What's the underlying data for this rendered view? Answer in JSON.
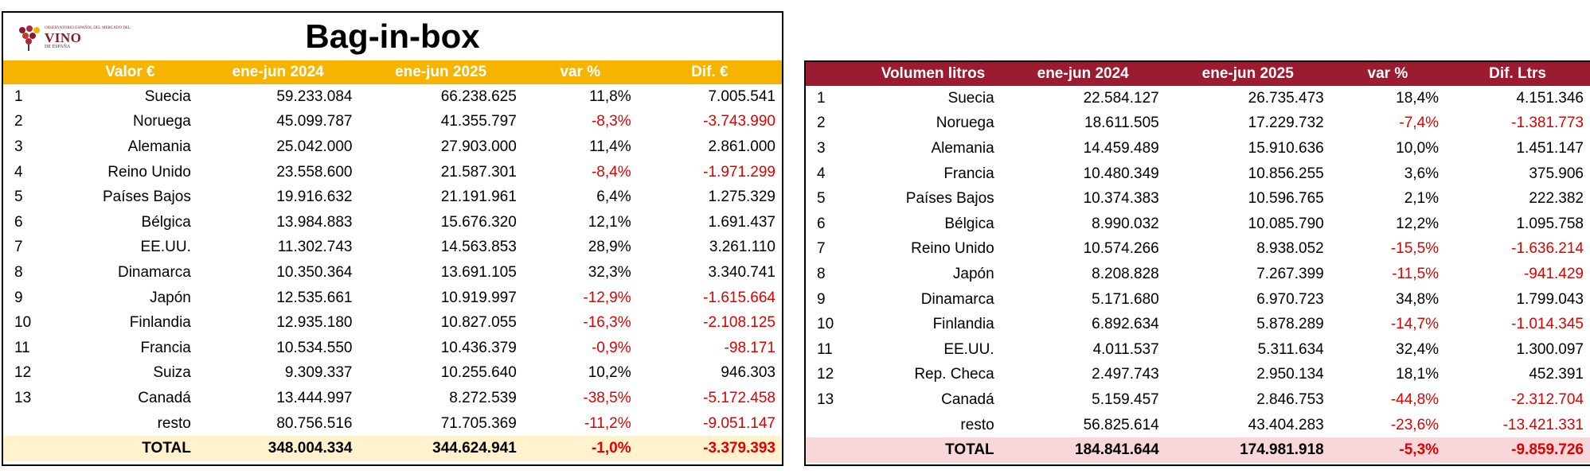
{
  "title": "Bag-in-box",
  "logo": {
    "small": "OBSERVATORIO ESPAÑOL DEL MERCADO DEL",
    "big": "VINO",
    "sub": "DE ESPAÑA"
  },
  "colors": {
    "left_header": "#f5b400",
    "right_header": "#9b1b30",
    "negative": "#e00000"
  },
  "left_table": {
    "headers": [
      "",
      "Valor €",
      "ene-jun 2024",
      "ene-jun 2025",
      "var %",
      "Dif. €"
    ],
    "rows": [
      {
        "rank": "1",
        "country": "Suecia",
        "y2024": "59.233.084",
        "y2025": "66.238.625",
        "var": "11,8%",
        "dif": "7.005.541"
      },
      {
        "rank": "2",
        "country": "Noruega",
        "y2024": "45.099.787",
        "y2025": "41.355.797",
        "var": "-8,3%",
        "dif": "-3.743.990"
      },
      {
        "rank": "3",
        "country": "Alemania",
        "y2024": "25.042.000",
        "y2025": "27.903.000",
        "var": "11,4%",
        "dif": "2.861.000"
      },
      {
        "rank": "4",
        "country": "Reino Unido",
        "y2024": "23.558.600",
        "y2025": "21.587.301",
        "var": "-8,4%",
        "dif": "-1.971.299"
      },
      {
        "rank": "5",
        "country": "Países Bajos",
        "y2024": "19.916.632",
        "y2025": "21.191.961",
        "var": "6,4%",
        "dif": "1.275.329"
      },
      {
        "rank": "6",
        "country": "Bélgica",
        "y2024": "13.984.883",
        "y2025": "15.676.320",
        "var": "12,1%",
        "dif": "1.691.437"
      },
      {
        "rank": "7",
        "country": "EE.UU.",
        "y2024": "11.302.743",
        "y2025": "14.563.853",
        "var": "28,9%",
        "dif": "3.261.110"
      },
      {
        "rank": "8",
        "country": "Dinamarca",
        "y2024": "10.350.364",
        "y2025": "13.691.105",
        "var": "32,3%",
        "dif": "3.340.741"
      },
      {
        "rank": "9",
        "country": "Japón",
        "y2024": "12.535.661",
        "y2025": "10.919.997",
        "var": "-12,9%",
        "dif": "-1.615.664"
      },
      {
        "rank": "10",
        "country": "Finlandia",
        "y2024": "12.935.180",
        "y2025": "10.827.055",
        "var": "-16,3%",
        "dif": "-2.108.125"
      },
      {
        "rank": "11",
        "country": "Francia",
        "y2024": "10.534.550",
        "y2025": "10.436.379",
        "var": "-0,9%",
        "dif": "-98.171"
      },
      {
        "rank": "12",
        "country": "Suiza",
        "y2024": "9.309.337",
        "y2025": "10.255.640",
        "var": "10,2%",
        "dif": "946.303"
      },
      {
        "rank": "13",
        "country": "Canadá",
        "y2024": "13.444.997",
        "y2025": "8.272.539",
        "var": "-38,5%",
        "dif": "-5.172.458"
      },
      {
        "rank": "",
        "country": "resto",
        "y2024": "80.756.516",
        "y2025": "71.705.369",
        "var": "-11,2%",
        "dif": "-9.051.147"
      }
    ],
    "total": {
      "rank": "",
      "country": "TOTAL",
      "y2024": "348.004.334",
      "y2025": "344.624.941",
      "var": "-1,0%",
      "dif": "-3.379.393"
    }
  },
  "right_table": {
    "headers": [
      "",
      "Volumen litros",
      "ene-jun 2024",
      "ene-jun 2025",
      "var %",
      "Dif. Ltrs"
    ],
    "rows": [
      {
        "rank": "1",
        "country": "Suecia",
        "y2024": "22.584.127",
        "y2025": "26.735.473",
        "var": "18,4%",
        "dif": "4.151.346"
      },
      {
        "rank": "2",
        "country": "Noruega",
        "y2024": "18.611.505",
        "y2025": "17.229.732",
        "var": "-7,4%",
        "dif": "-1.381.773"
      },
      {
        "rank": "3",
        "country": "Alemania",
        "y2024": "14.459.489",
        "y2025": "15.910.636",
        "var": "10,0%",
        "dif": "1.451.147"
      },
      {
        "rank": "4",
        "country": "Francia",
        "y2024": "10.480.349",
        "y2025": "10.856.255",
        "var": "3,6%",
        "dif": "375.906"
      },
      {
        "rank": "5",
        "country": "Países Bajos",
        "y2024": "10.374.383",
        "y2025": "10.596.765",
        "var": "2,1%",
        "dif": "222.382"
      },
      {
        "rank": "6",
        "country": "Bélgica",
        "y2024": "8.990.032",
        "y2025": "10.085.790",
        "var": "12,2%",
        "dif": "1.095.758"
      },
      {
        "rank": "7",
        "country": "Reino Unido",
        "y2024": "10.574.266",
        "y2025": "8.938.052",
        "var": "-15,5%",
        "dif": "-1.636.214"
      },
      {
        "rank": "8",
        "country": "Japón",
        "y2024": "8.208.828",
        "y2025": "7.267.399",
        "var": "-11,5%",
        "dif": "-941.429"
      },
      {
        "rank": "9",
        "country": "Dinamarca",
        "y2024": "5.171.680",
        "y2025": "6.970.723",
        "var": "34,8%",
        "dif": "1.799.043"
      },
      {
        "rank": "10",
        "country": "Finlandia",
        "y2024": "6.892.634",
        "y2025": "5.878.289",
        "var": "-14,7%",
        "dif": "-1.014.345"
      },
      {
        "rank": "11",
        "country": "EE.UU.",
        "y2024": "4.011.537",
        "y2025": "5.311.634",
        "var": "32,4%",
        "dif": "1.300.097"
      },
      {
        "rank": "12",
        "country": "Rep. Checa",
        "y2024": "2.497.743",
        "y2025": "2.950.134",
        "var": "18,1%",
        "dif": "452.391"
      },
      {
        "rank": "13",
        "country": "Canadá",
        "y2024": "5.159.457",
        "y2025": "2.846.753",
        "var": "-44,8%",
        "dif": "-2.312.704"
      },
      {
        "rank": "",
        "country": "resto",
        "y2024": "56.825.614",
        "y2025": "43.404.283",
        "var": "-23,6%",
        "dif": "-13.421.331"
      }
    ],
    "total": {
      "rank": "",
      "country": "TOTAL",
      "y2024": "184.841.644",
      "y2025": "174.981.918",
      "var": "-5,3%",
      "dif": "-9.859.726"
    }
  }
}
